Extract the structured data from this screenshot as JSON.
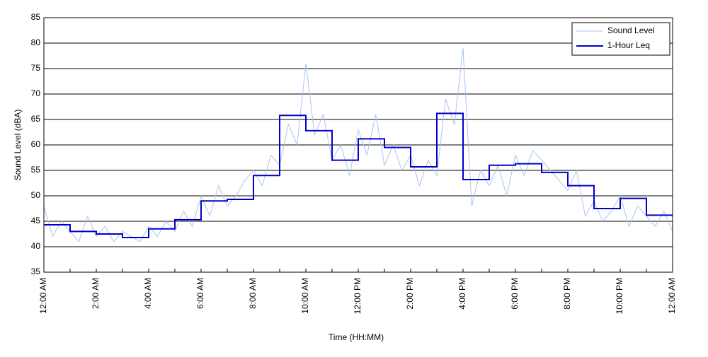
{
  "chart_data": {
    "type": "line",
    "xlabel": "Time (HH:MM)",
    "ylabel": "Sound Level (dBA)",
    "xlim": [
      0,
      1440
    ],
    "ylim": [
      35,
      85
    ],
    "xticks": [
      {
        "value": 0,
        "label": "12:00 AM"
      },
      {
        "value": 120,
        "label": "2:00 AM"
      },
      {
        "value": 240,
        "label": "4:00 AM"
      },
      {
        "value": 360,
        "label": "6:00 AM"
      },
      {
        "value": 480,
        "label": "8:00 AM"
      },
      {
        "value": 600,
        "label": "10:00 AM"
      },
      {
        "value": 720,
        "label": "12:00 PM"
      },
      {
        "value": 840,
        "label": "2:00 PM"
      },
      {
        "value": 960,
        "label": "4:00 PM"
      },
      {
        "value": 1080,
        "label": "6:00 PM"
      },
      {
        "value": 1200,
        "label": "8:00 PM"
      },
      {
        "value": 1320,
        "label": "10:00 PM"
      },
      {
        "value": 1440,
        "label": "12:00 AM"
      }
    ],
    "xminorticks": [
      60,
      180,
      300,
      420,
      540,
      660,
      780,
      900,
      1020,
      1140,
      1260,
      1380
    ],
    "yticks": [
      35,
      40,
      45,
      50,
      55,
      60,
      65,
      70,
      75,
      80,
      85
    ],
    "grid": true,
    "legend": "upper right",
    "series": [
      {
        "name": "Sound Level",
        "color": "#a8c4f0",
        "x": [
          0,
          20,
          40,
          60,
          80,
          100,
          120,
          140,
          160,
          180,
          200,
          220,
          240,
          260,
          280,
          300,
          320,
          340,
          360,
          380,
          400,
          420,
          440,
          460,
          480,
          500,
          520,
          540,
          560,
          580,
          600,
          620,
          640,
          660,
          680,
          700,
          720,
          740,
          760,
          780,
          800,
          820,
          840,
          860,
          880,
          900,
          920,
          940,
          960,
          980,
          1000,
          1020,
          1040,
          1060,
          1080,
          1100,
          1120,
          1140,
          1160,
          1180,
          1200,
          1220,
          1240,
          1260,
          1280,
          1300,
          1320,
          1340,
          1360,
          1380,
          1400,
          1420,
          1440
        ],
        "values": [
          48,
          42,
          45,
          43,
          41,
          46,
          42,
          44,
          41,
          43,
          42,
          41,
          44,
          42,
          45,
          43,
          47,
          44,
          50,
          46,
          52,
          48,
          50,
          53,
          55,
          52,
          58,
          56,
          64,
          60,
          76,
          62,
          66,
          57,
          60,
          54,
          63,
          58,
          66,
          56,
          60,
          55,
          58,
          52,
          57,
          54,
          69,
          64,
          79,
          48,
          55,
          52,
          56,
          50,
          58,
          54,
          59,
          57,
          55,
          53,
          51,
          55,
          46,
          49,
          45,
          47,
          50,
          44,
          48,
          46,
          44,
          47,
          43
        ]
      },
      {
        "name": "1-Hour Leq",
        "color": "#0000cc",
        "step": "post",
        "x": [
          0,
          60,
          120,
          180,
          240,
          300,
          360,
          420,
          480,
          540,
          600,
          660,
          720,
          780,
          840,
          900,
          960,
          1020,
          1080,
          1140,
          1200,
          1260,
          1320,
          1380
        ],
        "values": [
          44.3,
          43,
          42.5,
          41.8,
          43.5,
          45.3,
          49,
          49.3,
          54,
          65.8,
          62.8,
          57,
          61.2,
          59.5,
          55.7,
          66.2,
          53.2,
          56,
          56.3,
          54.6,
          52,
          47.5,
          49.5,
          46.2
        ]
      }
    ]
  }
}
